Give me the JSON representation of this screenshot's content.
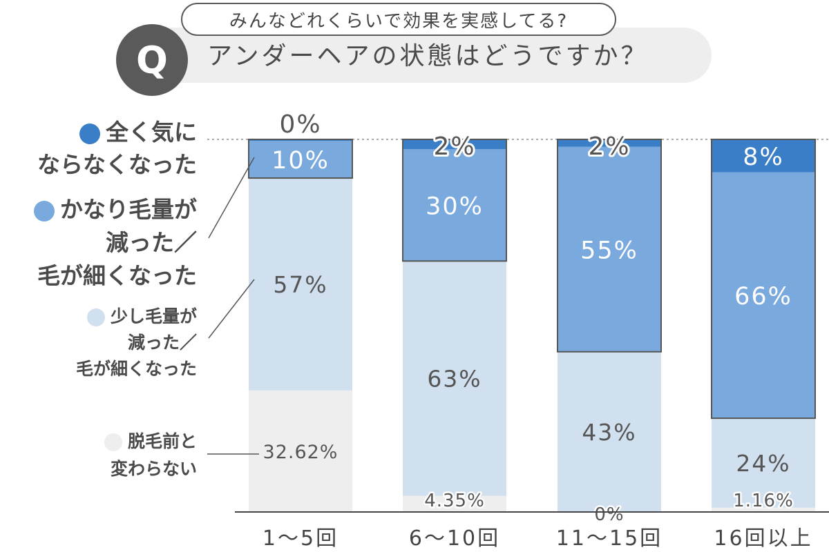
{
  "question": {
    "badge": "Q",
    "bubble": "みんなどれくらいで効果を実感してる?",
    "title": "アンダーヘアの状態はどうですか？"
  },
  "legend": [
    {
      "lines": [
        "全く気に",
        "ならなくなった"
      ],
      "color": "#3a7ec8"
    },
    {
      "lines": [
        "かなり毛量が",
        "減った／",
        "毛が細くなった"
      ],
      "color": "#7aaadd"
    },
    {
      "lines": [
        "少し毛量が",
        "減った／",
        "毛が細くなった"
      ],
      "color": "#d0e0ef"
    },
    {
      "lines": [
        "脱毛前と",
        "変わらない"
      ],
      "color": "#eeeeee"
    }
  ],
  "colors": {
    "none": "#eeeeee",
    "slight": "#d0e0ef",
    "considerable": "#7aaadd",
    "complete": "#3a7ec8",
    "outline": "#555555"
  },
  "chart_data": {
    "type": "bar",
    "stacked": true,
    "categories": [
      "1〜5回",
      "6〜10回",
      "11〜15回",
      "16回以上"
    ],
    "series": [
      {
        "name": "脱毛前と変わらない",
        "values": [
          32.62,
          4.35,
          0,
          1.16
        ],
        "labels": [
          "32.62%",
          "4.35%",
          "0%",
          "1.16%"
        ]
      },
      {
        "name": "少し毛量が減った／毛が細くなった",
        "values": [
          57,
          63,
          43,
          24
        ],
        "labels": [
          "57%",
          "63%",
          "43%",
          "24%"
        ]
      },
      {
        "name": "かなり毛量が減った／毛が細くなった",
        "values": [
          10,
          30,
          55,
          66
        ],
        "labels": [
          "10%",
          "30%",
          "55%",
          "66%"
        ]
      },
      {
        "name": "全く気にならなくなった",
        "values": [
          0,
          2,
          2,
          8
        ],
        "labels": [
          "0%",
          "2%",
          "2%",
          "8%"
        ]
      }
    ],
    "ylim": [
      0,
      100
    ]
  }
}
